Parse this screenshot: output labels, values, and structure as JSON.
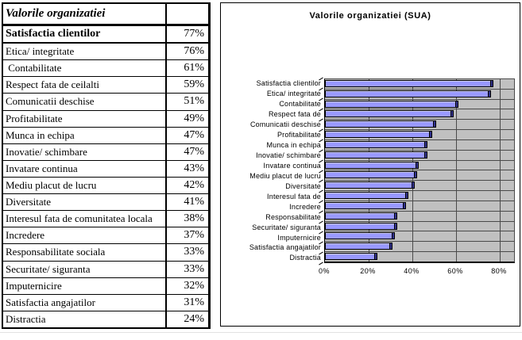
{
  "table": {
    "header": {
      "label": "Valorile organizatiei",
      "value": ""
    },
    "rows": [
      {
        "label": "Satisfactia clientilor",
        "value": "77%",
        "bold": true
      },
      {
        "label": "Etica/ integritate",
        "value": "76%"
      },
      {
        "label": " Contabilitate",
        "value": "61%"
      },
      {
        "label": "Respect fata de ceilalti",
        "value": "59%"
      },
      {
        "label": "Comunicatii deschise",
        "value": "51%"
      },
      {
        "label": "Profitabilitate",
        "value": "49%"
      },
      {
        "label": "Munca in echipa",
        "value": "47%"
      },
      {
        "label": "Inovatie/ schimbare",
        "value": "47%"
      },
      {
        "label": "Invatare continua",
        "value": "43%"
      },
      {
        "label": "Mediu placut de lucru",
        "value": "42%"
      },
      {
        "label": "Diversitate",
        "value": "41%"
      },
      {
        "label": "Interesul fata de comunitatea locala",
        "value": "38%"
      },
      {
        "label": "Incredere",
        "value": "37%"
      },
      {
        "label": "Responsabilitate sociala",
        "value": "33%"
      },
      {
        "label": "Securitate/ siguranta",
        "value": "33%"
      },
      {
        "label": "Imputernicire",
        "value": "32%"
      },
      {
        "label": "Satisfactia angajatilor",
        "value": "31%"
      },
      {
        "label": "Distractia",
        "value": "24%"
      }
    ]
  },
  "chart_data": {
    "type": "bar",
    "orientation": "horizontal",
    "title": "Valorile organizatiei (SUA)",
    "categories": [
      "Satisfactia clientilor",
      "Etica/ integritate",
      "Contabilitate",
      "Respect fata de",
      "Comunicatii deschise",
      "Profitabilitate",
      "Munca in echipa",
      "Inovatie/ schimbare",
      "Invatare continua",
      "Mediu placut de lucru",
      "Diversitate",
      "Interesul fata de",
      "Incredere",
      "Responsabilitate",
      "Securitate/ siguranta",
      "Imputernicire",
      "Satisfactia angajatilor",
      "Distractia"
    ],
    "values": [
      77,
      76,
      61,
      59,
      51,
      49,
      47,
      47,
      43,
      42,
      41,
      38,
      37,
      33,
      33,
      32,
      31,
      24
    ],
    "x_ticks": [
      "0%",
      "20%",
      "40%",
      "60%",
      "80%"
    ],
    "x_tick_values": [
      0,
      20,
      40,
      60,
      80
    ],
    "xlim": [
      0,
      87
    ],
    "grid": true,
    "legend": false,
    "colors": {
      "bar_fill": "#9999ff",
      "bar_end_cap": "#32328c",
      "bar_highlight": "#ccccff",
      "plot_bg": "#c0c0c0",
      "gridline": "#4a4a4a",
      "frame": "#000000"
    }
  }
}
